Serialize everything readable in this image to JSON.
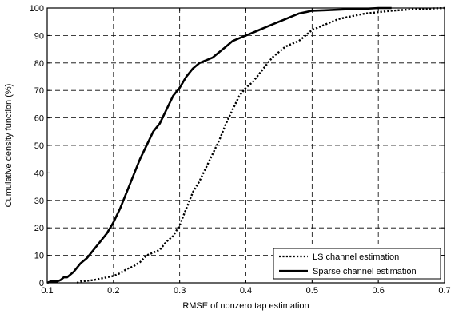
{
  "chart_data": {
    "type": "line",
    "title": "",
    "xlabel": "RMSE of nonzero tap estimation",
    "ylabel": "Cumulative density function (%)",
    "xlim": [
      0.1,
      0.7
    ],
    "ylim": [
      0,
      100
    ],
    "xticks": [
      "0.1",
      "0.2",
      "0.3",
      "0.4",
      "0.5",
      "0.6",
      "0.7"
    ],
    "yticks": [
      "0",
      "10",
      "20",
      "30",
      "40",
      "50",
      "60",
      "70",
      "80",
      "90",
      "100"
    ],
    "grid": true,
    "legend_position": "bottom-right",
    "series": [
      {
        "name": "LS channel estimation",
        "line_style": "dotted",
        "color": "#000000",
        "x": [
          0.145,
          0.15,
          0.17,
          0.18,
          0.19,
          0.2,
          0.21,
          0.22,
          0.23,
          0.24,
          0.25,
          0.26,
          0.27,
          0.28,
          0.29,
          0.3,
          0.31,
          0.32,
          0.33,
          0.34,
          0.35,
          0.36,
          0.37,
          0.38,
          0.39,
          0.4,
          0.41,
          0.42,
          0.43,
          0.44,
          0.45,
          0.46,
          0.47,
          0.48,
          0.49,
          0.5,
          0.51,
          0.52,
          0.53,
          0.54,
          0.55,
          0.56,
          0.57,
          0.58,
          0.6,
          0.62,
          0.65,
          0.7
        ],
        "y": [
          0,
          0.5,
          1,
          1.5,
          2,
          2.5,
          3.5,
          5,
          6,
          7.5,
          10,
          11,
          12,
          15,
          17,
          21,
          27,
          33,
          37,
          42,
          47,
          52,
          58,
          63,
          68,
          71,
          73,
          76,
          79,
          82,
          84,
          86,
          87,
          88,
          90,
          92,
          93,
          94,
          95,
          96,
          96.5,
          97,
          97.5,
          98,
          98.5,
          99,
          99.5,
          100
        ]
      },
      {
        "name": "Sparse channel estimation",
        "line_style": "solid",
        "color": "#000000",
        "x": [
          0.1,
          0.105,
          0.11,
          0.115,
          0.12,
          0.125,
          0.13,
          0.14,
          0.15,
          0.16,
          0.17,
          0.18,
          0.19,
          0.2,
          0.21,
          0.22,
          0.23,
          0.24,
          0.25,
          0.26,
          0.27,
          0.28,
          0.29,
          0.3,
          0.31,
          0.32,
          0.33,
          0.34,
          0.35,
          0.36,
          0.37,
          0.38,
          0.39,
          0.4,
          0.41,
          0.42,
          0.43,
          0.44,
          0.45,
          0.46,
          0.47,
          0.48,
          0.49,
          0.5,
          0.52,
          0.55,
          0.58,
          0.6,
          0.62
        ],
        "y": [
          0,
          0.5,
          0.5,
          0.5,
          1,
          2,
          2,
          4,
          7,
          9,
          12,
          15,
          18,
          22,
          27,
          33,
          39,
          45,
          50,
          55,
          58,
          63,
          68,
          71,
          75,
          78,
          80,
          81,
          82,
          84,
          86,
          88,
          89,
          90,
          91,
          92,
          93,
          94,
          95,
          96,
          97,
          98,
          98.5,
          99,
          99.2,
          99.5,
          99.7,
          100,
          100
        ]
      }
    ]
  }
}
